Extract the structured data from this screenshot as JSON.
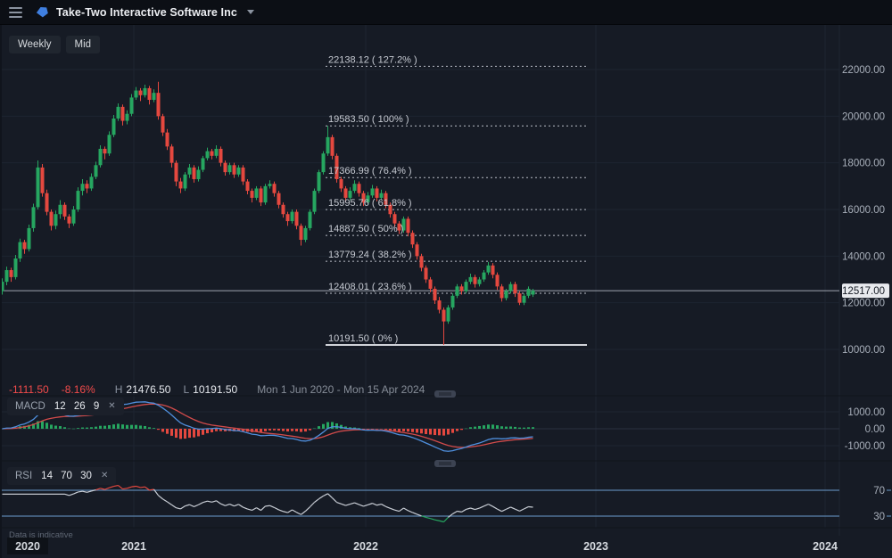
{
  "topbar": {
    "title": "Take-Two Interactive Software Inc"
  },
  "toolbar": {
    "timeframe_label": "Weekly",
    "size_label": "Mid"
  },
  "status": {
    "change": "-1111.50",
    "change_pct": "-8.16%",
    "high_label": "H",
    "high_value": "21476.50",
    "low_label": "L",
    "low_value": "10191.50",
    "date_range": "Mon 1 Jun 2020 - Mon 15 Apr 2024"
  },
  "macd_header": {
    "name": "MACD",
    "params": "12 26 9",
    "close_label": "✕"
  },
  "rsi_header": {
    "name": "RSI",
    "params": "14 70 30",
    "close_label": "✕"
  },
  "footer": {
    "note": "Data is indicative",
    "years": [
      "2020",
      "2021",
      "2022",
      "2023",
      "2024"
    ]
  },
  "axis": {
    "current_price": "12517.00",
    "current_price_value": 12517,
    "main_ticks": [
      {
        "value": 22000,
        "label": "22000.00"
      },
      {
        "value": 20000,
        "label": "20000.00"
      },
      {
        "value": 18000,
        "label": "18000.00"
      },
      {
        "value": 16000,
        "label": "16000.00"
      },
      {
        "value": 14000,
        "label": "14000.00"
      },
      {
        "value": 12000,
        "label": "12000.00"
      },
      {
        "value": 10000,
        "label": "10000.00"
      }
    ]
  },
  "colors": {
    "up": "#26a660",
    "down": "#e4483f",
    "macd_line": "#4f8fdd",
    "signal_line": "#d14b4b",
    "rsi_line": "#c9ced6",
    "rsi_level": "#5b84ad",
    "fib": "#b9bdc6",
    "fib_text": "#c7cbd3",
    "price_line": "#9fa6b0",
    "badge_bg": "#e8eaee",
    "badge_text": "#151a23",
    "grid": "#1e2531",
    "axis_text": "#a9b0bb",
    "year_text": "#d6dae0",
    "negative": "#f24b4b",
    "tag": "#3f7fe0"
  },
  "chart_data": [
    {
      "type": "candlestick",
      "title": "Take-Two Interactive Software Inc",
      "interval": "Weekly",
      "ylim": [
        10000,
        22000
      ],
      "high": 21476.5,
      "low": 10191.5,
      "last_close": 12517,
      "fib_levels": [
        {
          "value": 22138.12,
          "label": "22138.12 ( 127.2% )",
          "solid": false
        },
        {
          "value": 19583.5,
          "label": "19583.50 ( 100% )",
          "solid": false
        },
        {
          "value": 17366.99,
          "label": "17366.99 ( 76.4% )",
          "solid": false
        },
        {
          "value": 15995.76,
          "label": "15995.76 ( 61.8% )",
          "solid": false
        },
        {
          "value": 14887.5,
          "label": "14887.50 ( 50% )",
          "solid": false
        },
        {
          "value": 13779.24,
          "label": "13779.24 ( 38.2% )",
          "solid": false
        },
        {
          "value": 12408.01,
          "label": "12408.01 ( 23.6% )",
          "solid": false
        },
        {
          "value": 10191.5,
          "label": "10191.50 ( 0% )",
          "solid": true
        }
      ],
      "candles": [
        [
          12500,
          13050,
          12350,
          12900
        ],
        [
          12900,
          13550,
          12750,
          13400
        ],
        [
          13400,
          13500,
          12900,
          13100
        ],
        [
          13100,
          14050,
          13000,
          13900
        ],
        [
          13900,
          14750,
          13750,
          14600
        ],
        [
          14600,
          14700,
          14100,
          14300
        ],
        [
          14300,
          15350,
          14200,
          15200
        ],
        [
          15200,
          16250,
          15050,
          16100
        ],
        [
          16100,
          18100,
          16000,
          17800
        ],
        [
          17800,
          17950,
          16550,
          16700
        ],
        [
          16700,
          16850,
          15750,
          15900
        ],
        [
          15900,
          16000,
          15100,
          15300
        ],
        [
          15300,
          15950,
          15150,
          15800
        ],
        [
          15800,
          16400,
          15600,
          16200
        ],
        [
          16200,
          16300,
          15550,
          15700
        ],
        [
          15700,
          15800,
          15200,
          15400
        ],
        [
          15400,
          16150,
          15300,
          16000
        ],
        [
          16000,
          16950,
          15900,
          16800
        ],
        [
          16800,
          17300,
          16600,
          17100
        ],
        [
          17100,
          17250,
          16700,
          16900
        ],
        [
          16900,
          17550,
          16800,
          17400
        ],
        [
          17400,
          18050,
          17300,
          17900
        ],
        [
          17900,
          18750,
          17800,
          18600
        ],
        [
          18600,
          18700,
          18150,
          18400
        ],
        [
          18400,
          19350,
          18300,
          19200
        ],
        [
          19200,
          20050,
          19100,
          19900
        ],
        [
          19900,
          20550,
          19800,
          20400
        ],
        [
          20400,
          20500,
          19600,
          19800
        ],
        [
          19800,
          20250,
          19650,
          20100
        ],
        [
          20100,
          20950,
          20000,
          20800
        ],
        [
          20800,
          21250,
          20700,
          21100
        ],
        [
          21100,
          21200,
          20650,
          20900
        ],
        [
          20900,
          21350,
          20800,
          21200
        ],
        [
          21200,
          21300,
          20500,
          20700
        ],
        [
          20700,
          21150,
          20600,
          21000
        ],
        [
          21000,
          21476.5,
          19850,
          20000
        ],
        [
          20000,
          20100,
          19150,
          19300
        ],
        [
          19300,
          19450,
          18550,
          18700
        ],
        [
          18700,
          18800,
          17800,
          18000
        ],
        [
          18000,
          18100,
          17000,
          17200
        ],
        [
          17200,
          17350,
          16700,
          16900
        ],
        [
          16900,
          17600,
          16800,
          17500
        ],
        [
          17500,
          17950,
          17350,
          17800
        ],
        [
          17800,
          17900,
          17150,
          17300
        ],
        [
          17300,
          17850,
          17200,
          17700
        ],
        [
          17700,
          18300,
          17600,
          18200
        ],
        [
          18200,
          18650,
          18100,
          18500
        ],
        [
          18500,
          18600,
          18150,
          18300
        ],
        [
          18300,
          18750,
          18200,
          18600
        ],
        [
          18600,
          18700,
          17850,
          18000
        ],
        [
          18000,
          18100,
          17450,
          17600
        ],
        [
          17600,
          18000,
          17500,
          17900
        ],
        [
          17900,
          18000,
          17350,
          17500
        ],
        [
          17500,
          17900,
          17400,
          17800
        ],
        [
          17800,
          17900,
          17050,
          17200
        ],
        [
          17200,
          17300,
          16650,
          16800
        ],
        [
          16800,
          16900,
          16300,
          16500
        ],
        [
          16500,
          17000,
          16400,
          16900
        ],
        [
          16900,
          17000,
          16150,
          16300
        ],
        [
          16300,
          17100,
          16200,
          17000
        ],
        [
          17000,
          17250,
          16900,
          17100
        ],
        [
          17100,
          17200,
          16550,
          16700
        ],
        [
          16700,
          16800,
          16050,
          16200
        ],
        [
          16200,
          16300,
          15650,
          15800
        ],
        [
          15800,
          15900,
          15300,
          15500
        ],
        [
          15500,
          16000,
          15400,
          15900
        ],
        [
          15900,
          16000,
          15150,
          15300
        ],
        [
          15300,
          15400,
          14450,
          14700
        ],
        [
          14700,
          15300,
          14600,
          15200
        ],
        [
          15200,
          16000,
          15100,
          15900
        ],
        [
          15900,
          16900,
          15800,
          16800
        ],
        [
          16800,
          17700,
          16700,
          17600
        ],
        [
          17600,
          18500,
          17500,
          18400
        ],
        [
          18400,
          19583.5,
          18300,
          19100
        ],
        [
          19100,
          19200,
          18150,
          18300
        ],
        [
          18300,
          18400,
          17150,
          17300
        ],
        [
          17300,
          17400,
          16750,
          16900
        ],
        [
          16900,
          17000,
          16300,
          16500
        ],
        [
          16500,
          16950,
          16400,
          16800
        ],
        [
          16800,
          17250,
          16700,
          17100
        ],
        [
          17100,
          17200,
          16550,
          16700
        ],
        [
          16700,
          16800,
          16150,
          16300
        ],
        [
          16300,
          16750,
          16200,
          16600
        ],
        [
          16600,
          17050,
          16500,
          16900
        ],
        [
          16900,
          17000,
          16350,
          16500
        ],
        [
          16500,
          16850,
          16400,
          16700
        ],
        [
          16700,
          16800,
          16050,
          16200
        ],
        [
          16200,
          16300,
          15650,
          15800
        ],
        [
          15800,
          15900,
          15250,
          15400
        ],
        [
          15400,
          15500,
          14950,
          15100
        ],
        [
          15100,
          15700,
          15000,
          15600
        ],
        [
          15600,
          15700,
          14850,
          15000
        ],
        [
          15000,
          15100,
          14350,
          14500
        ],
        [
          14500,
          14600,
          13850,
          14000
        ],
        [
          14000,
          14100,
          13350,
          13500
        ],
        [
          13500,
          13600,
          12850,
          13000
        ],
        [
          13000,
          13100,
          12450,
          12600
        ],
        [
          12600,
          12700,
          11950,
          12100
        ],
        [
          12100,
          12250,
          11550,
          11700
        ],
        [
          11700,
          11800,
          10191.5,
          11200
        ],
        [
          11200,
          11900,
          11100,
          11800
        ],
        [
          11800,
          12400,
          11700,
          12300
        ],
        [
          12300,
          12800,
          12200,
          12700
        ],
        [
          12700,
          12800,
          12350,
          12500
        ],
        [
          12500,
          13000,
          12400,
          12900
        ],
        [
          12900,
          13250,
          12800,
          13100
        ],
        [
          13100,
          13200,
          12650,
          12800
        ],
        [
          12800,
          13100,
          12700,
          13000
        ],
        [
          13000,
          13400,
          12900,
          13300
        ],
        [
          13300,
          13750,
          13200,
          13600
        ],
        [
          13600,
          13700,
          13050,
          13200
        ],
        [
          13200,
          13300,
          12550,
          12700
        ],
        [
          12700,
          12800,
          12050,
          12200
        ],
        [
          12200,
          12600,
          12100,
          12500
        ],
        [
          12500,
          12900,
          12400,
          12800
        ],
        [
          12800,
          12900,
          12250,
          12400
        ],
        [
          12400,
          12500,
          11900,
          12000
        ],
        [
          12000,
          12400,
          11900,
          12300
        ],
        [
          12300,
          12700,
          12200,
          12600
        ],
        [
          12350,
          12600,
          12250,
          12517
        ]
      ]
    },
    {
      "type": "macd",
      "params": {
        "fast": 12,
        "slow": 26,
        "signal": 9
      },
      "y_ticks": [
        {
          "value": 1000,
          "label": "1000.00"
        },
        {
          "value": 0,
          "label": "0.00"
        },
        {
          "value": -1000,
          "label": "-1000.00"
        }
      ],
      "source": "candles"
    },
    {
      "type": "rsi",
      "params": {
        "period": 14,
        "overbought": 70,
        "oversold": 30
      },
      "y_ticks": [
        {
          "value": 70,
          "label": "70"
        },
        {
          "value": 30,
          "label": "30"
        }
      ],
      "source": "candles"
    }
  ]
}
